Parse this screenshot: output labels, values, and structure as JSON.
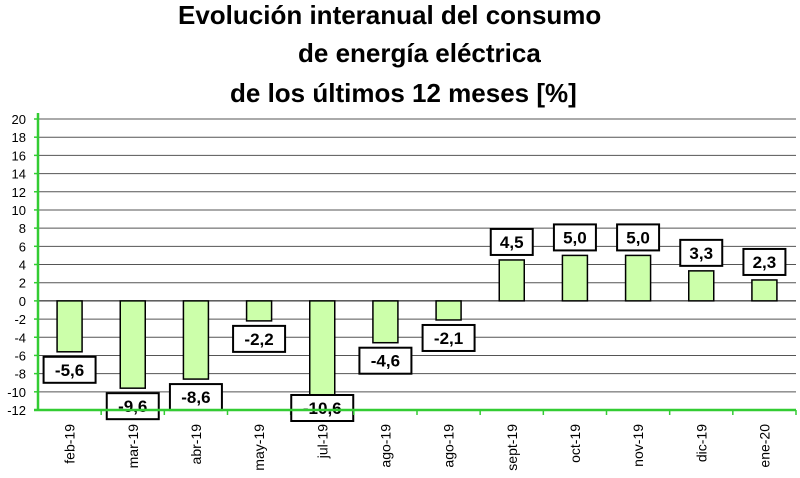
{
  "title_lines": [
    "Evolución interanual del consumo",
    "de energía eléctrica",
    "de los últimos 12 meses [%]"
  ],
  "colors": {
    "bar_fill": "#ccffaa",
    "bar_stroke": "#000000",
    "axis": "#33cc33",
    "grid": "#555555"
  },
  "chart_data": {
    "type": "bar",
    "title": "Evolución interanual del consumo de energía eléctrica de los últimos 12 meses [%]",
    "categories": [
      "feb-19",
      "mar-19",
      "abr-19",
      "may-19",
      "jul-19",
      "ago-19",
      "ago-19",
      "sept-19",
      "oct-19",
      "nov-19",
      "dic-19",
      "ene-20"
    ],
    "values": [
      -5.6,
      -9.6,
      -8.6,
      -2.2,
      -10.6,
      -4.6,
      -2.1,
      4.5,
      5.0,
      5.0,
      3.3,
      2.3
    ],
    "value_labels": [
      "-5,6",
      "-9,6",
      "-8,6",
      "-2,2",
      "-10,6",
      "-4,6",
      "-2,1",
      "4,5",
      "5,0",
      "5,0",
      "3,3",
      "2,3"
    ],
    "y_ticks": [
      "20",
      "18",
      "16",
      "14",
      "12",
      "10",
      "8",
      "6",
      "4",
      "2",
      "0",
      "-2",
      "-4",
      "-6",
      "-8",
      "-10",
      "-12"
    ],
    "ylim": [
      -12,
      20
    ],
    "xlabel": "",
    "ylabel": "",
    "grid": true,
    "legend": "none"
  }
}
